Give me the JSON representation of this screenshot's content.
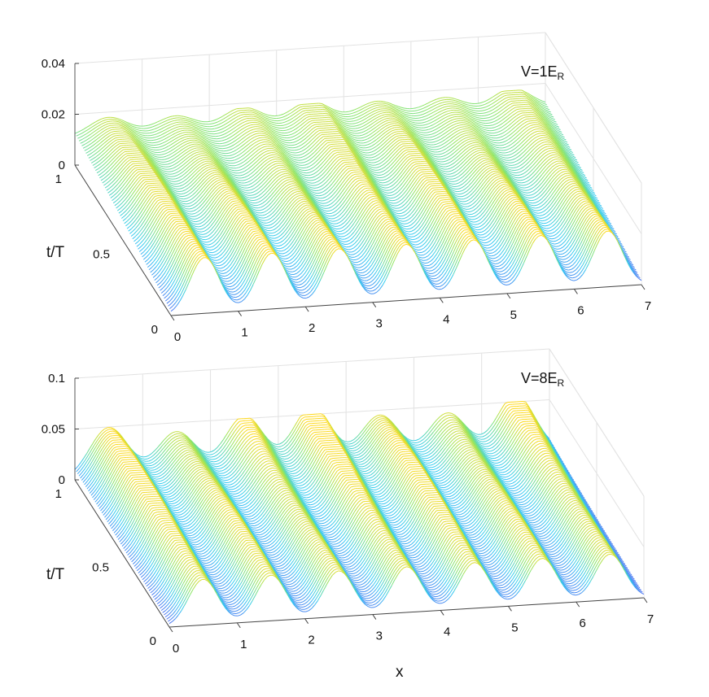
{
  "chart_data": [
    {
      "type": "waterfall-3d",
      "annotation": "V=1E",
      "annotation_sub": "R",
      "x_label": "x",
      "y_label": "t/T",
      "xlim": [
        0,
        7
      ],
      "ylim": [
        0,
        1
      ],
      "zlim": [
        0,
        0.04
      ],
      "x_ticks": [
        "0",
        "1",
        "2",
        "3",
        "4",
        "5",
        "6",
        "7"
      ],
      "y_ticks": [
        "0",
        "0.5",
        "1"
      ],
      "z_ticks": [
        "0",
        "0.02",
        "0.04"
      ],
      "grid": true,
      "peak_x": [
        0.5,
        1.5,
        2.5,
        3.5,
        4.5,
        5.5,
        6.5
      ],
      "peak_height_t0": 0.022,
      "peak_height_t1": 0.018,
      "baseline_t1": 0.011,
      "trough_t0": 0.0,
      "colormap": "jet"
    },
    {
      "type": "waterfall-3d",
      "annotation": "V=8E",
      "annotation_sub": "R",
      "x_label": "x",
      "y_label": "t/T",
      "xlim": [
        0,
        7
      ],
      "ylim": [
        0,
        1
      ],
      "zlim": [
        0,
        0.1
      ],
      "x_ticks": [
        "0",
        "1",
        "2",
        "3",
        "4",
        "5",
        "6",
        "7"
      ],
      "y_ticks": [
        "0",
        "0.5",
        "1"
      ],
      "z_ticks": [
        "0",
        "0.05",
        "0.1"
      ],
      "grid": true,
      "peak_x": [
        0.5,
        1.5,
        2.5,
        3.5,
        4.5,
        5.5,
        6.5
      ],
      "peak_height_t0": 0.045,
      "peak_height_t1": 0.05,
      "baseline_t1": 0.0,
      "trough_t0": 0.0,
      "colormap": "jet"
    }
  ]
}
